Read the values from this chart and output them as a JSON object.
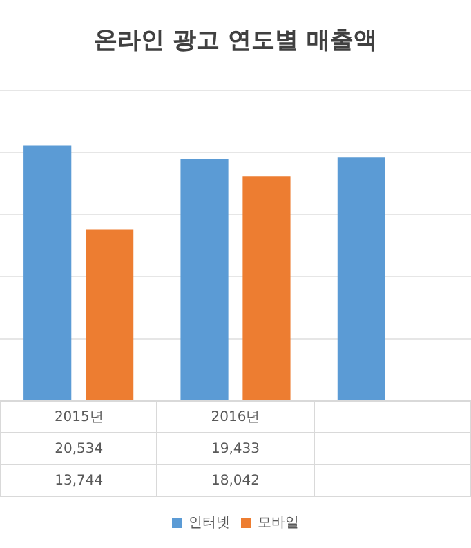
{
  "chart_data": {
    "type": "bar",
    "title": "온라인 광고 연도별 매출액",
    "categories": [
      "2015년",
      "2016년",
      null
    ],
    "series": [
      {
        "name": "인터넷",
        "color": "#5b9bd5",
        "values": [
          20534,
          19433,
          19540
        ],
        "value_labels": [
          "20,534",
          "19,433",
          null
        ]
      },
      {
        "name": "모바일",
        "color": "#ed7d31",
        "values": [
          13744,
          18042,
          null
        ],
        "value_labels": [
          "13,744",
          "18,042",
          null
        ]
      }
    ],
    "ylim": [
      0,
      25000
    ],
    "grid": "y",
    "tick_labels": "x",
    "legend": "bottom"
  }
}
